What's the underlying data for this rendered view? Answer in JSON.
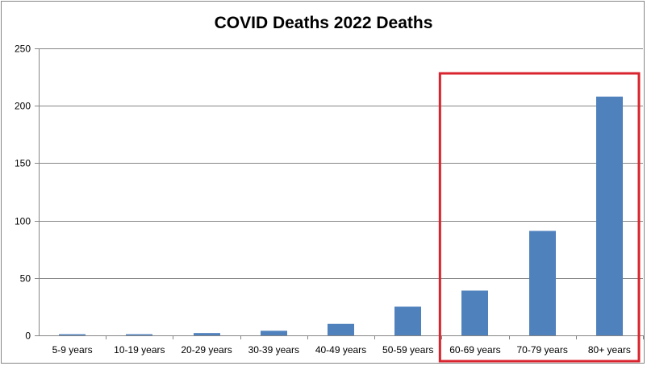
{
  "chart_data": {
    "type": "bar",
    "title": "COVID Deaths 2022 Deaths",
    "categories": [
      "5-9 years",
      "10-19 years",
      "20-29 years",
      "30-39 years",
      "40-49 years",
      "50-59 years",
      "60-69 years",
      "70-79 years",
      "80+ years"
    ],
    "values": [
      1,
      1,
      2,
      4,
      10,
      25,
      39,
      91,
      208
    ],
    "ylim": [
      0,
      250
    ],
    "yticks": [
      0,
      50,
      100,
      150,
      200,
      250
    ],
    "grid": true,
    "legend": "none",
    "bar_color": "#4F81BD",
    "highlight": {
      "from_category": "60-69 years",
      "to_category": "80+ years",
      "color": "#D9232E"
    }
  }
}
